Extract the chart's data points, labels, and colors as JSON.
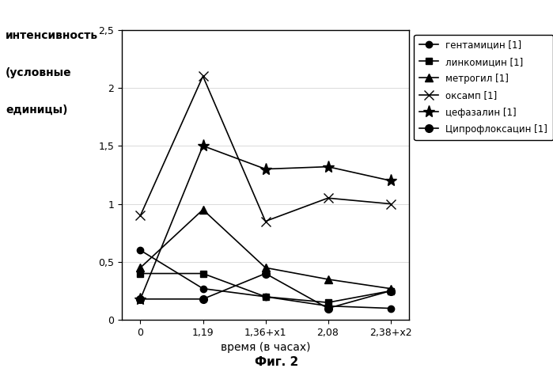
{
  "x_labels": [
    "0",
    "1,19",
    "1,36+x1",
    "2,08",
    "2,38+x2"
  ],
  "x_positions": [
    0,
    1,
    2,
    3,
    4
  ],
  "series": [
    {
      "name": "гентамицин [1]",
      "values": [
        0.6,
        0.27,
        0.2,
        0.12,
        0.1
      ],
      "color": "#000000",
      "marker": "o",
      "markersize": 6,
      "markerfacecolor": "#000000",
      "linestyle": "-"
    },
    {
      "name": "линкомицин [1]",
      "values": [
        0.4,
        0.4,
        0.2,
        0.15,
        0.25
      ],
      "color": "#000000",
      "marker": "s",
      "markersize": 6,
      "markerfacecolor": "#000000",
      "linestyle": "-"
    },
    {
      "name": "метрогил [1]",
      "values": [
        0.45,
        0.95,
        0.45,
        0.35,
        0.27
      ],
      "color": "#000000",
      "marker": "^",
      "markersize": 7,
      "markerfacecolor": "#000000",
      "linestyle": "-"
    },
    {
      "name": "оксамп [1]",
      "values": [
        0.9,
        2.1,
        0.85,
        1.05,
        1.0
      ],
      "color": "#000000",
      "marker": "x",
      "markersize": 9,
      "markerfacecolor": "#000000",
      "linestyle": "-"
    },
    {
      "name": "цефазалин [1]",
      "values": [
        0.18,
        1.5,
        1.3,
        1.32,
        1.2
      ],
      "color": "#000000",
      "marker": "*",
      "markersize": 11,
      "markerfacecolor": "#000000",
      "linestyle": "-"
    },
    {
      "name": "Ципрофлоксацин [1]",
      "values": [
        0.18,
        0.18,
        0.4,
        0.1,
        0.25
      ],
      "color": "#000000",
      "marker": "o",
      "markersize": 7,
      "markerfacecolor": "#000000",
      "linestyle": "-"
    }
  ],
  "ylabel_lines": [
    "интенсивность",
    "(условные",
    "единицы)"
  ],
  "xlabel": "время (в часах)",
  "ylim": [
    0,
    2.5
  ],
  "yticks": [
    0,
    0.5,
    1.0,
    1.5,
    2.0,
    2.5
  ],
  "ytick_labels": [
    "0",
    "0,5",
    "1",
    "1,5",
    "2",
    "2,5"
  ],
  "fig_caption": "Фиг. 2",
  "background_color": "#ffffff"
}
